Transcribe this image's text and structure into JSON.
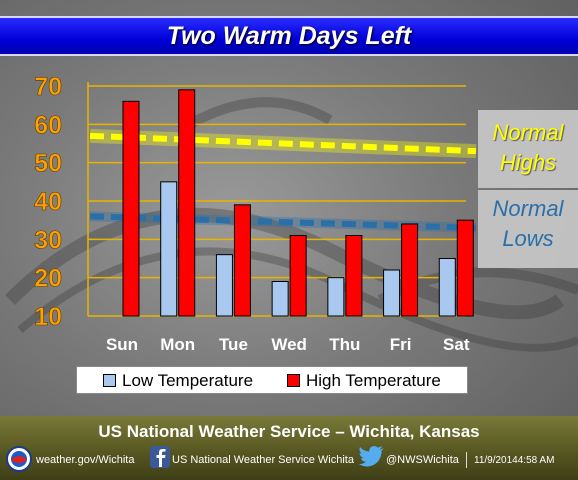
{
  "header": {
    "title": "Two Warm Days Left"
  },
  "chart_data": {
    "type": "bar",
    "categories": [
      "Sun",
      "Mon",
      "Tue",
      "Wed",
      "Thu",
      "Fri",
      "Sat"
    ],
    "series": [
      {
        "name": "Low Temperature",
        "color": "#a9c8f0",
        "values": [
          null,
          45,
          26,
          19,
          20,
          22,
          25
        ]
      },
      {
        "name": "High Temperature",
        "color": "#ff0000",
        "values": [
          66,
          69,
          39,
          31,
          31,
          34,
          35
        ]
      }
    ],
    "ylim": [
      10,
      70
    ],
    "yticks": [
      10,
      20,
      30,
      40,
      50,
      60,
      70
    ],
    "grid": true,
    "normals": [
      {
        "label_line1": "Normal",
        "label_line2": "Highs",
        "start": 57,
        "end": 53,
        "color": "#ffff00",
        "text_color": "#ffff00"
      },
      {
        "label_line1": "Normal",
        "label_line2": "Lows",
        "start": 36,
        "end": 33,
        "color": "#2a6fa8",
        "text_color": "#2a6fa8"
      }
    ],
    "legend_position": "bottom"
  },
  "footer": {
    "title": "US National Weather Service – Wichita, Kansas",
    "website": "weather.gov/Wichita",
    "facebook": "US National Weather Service Wichita",
    "twitter": "@NWSWichita",
    "timestamp": "11/9/20144:58 AM",
    "icons": [
      "nws-logo-icon",
      "facebook-icon",
      "twitter-icon"
    ]
  }
}
